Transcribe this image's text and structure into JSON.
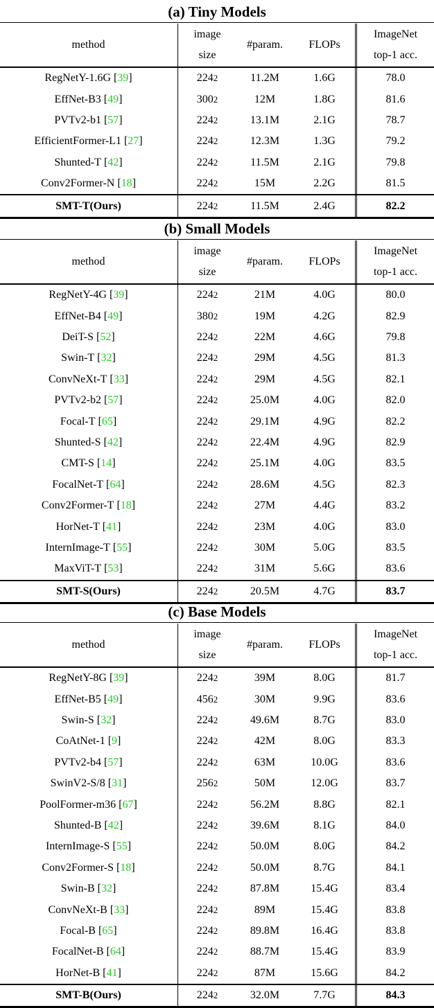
{
  "columns": {
    "method": "method",
    "image_size": [
      "image",
      "size"
    ],
    "params": "#param.",
    "flops": "FLOPs",
    "acc": [
      "ImageNet",
      "top-1 acc."
    ]
  },
  "sections": [
    {
      "title": "(a) Tiny Models",
      "rows": [
        {
          "name": "RegNetY-1.6G",
          "ref": "39",
          "size": "224",
          "params": "11.2M",
          "flops": "1.6G",
          "acc": "78.0"
        },
        {
          "name": "EffNet-B3",
          "ref": "49",
          "size": "300",
          "params": "12M",
          "flops": "1.8G",
          "acc": "81.6"
        },
        {
          "name": "PVTv2-b1",
          "ref": "57",
          "size": "224",
          "params": "13.1M",
          "flops": "2.1G",
          "acc": "78.7"
        },
        {
          "name": "EfficientFormer-L1",
          "ref": "27",
          "size": "224",
          "params": "12.3M",
          "flops": "1.3G",
          "acc": "79.2"
        },
        {
          "name": "Shunted-T",
          "ref": "42",
          "size": "224",
          "params": "11.5M",
          "flops": "2.1G",
          "acc": "79.8"
        },
        {
          "name": "Conv2Former-N",
          "ref": "18",
          "size": "224",
          "params": "15M",
          "flops": "2.2G",
          "acc": "81.5"
        }
      ],
      "ours": {
        "name": "SMT-T(Ours)",
        "size": "224",
        "params": "11.5M",
        "flops": "2.4G",
        "acc": "82.2"
      }
    },
    {
      "title": "(b) Small Models",
      "rows": [
        {
          "name": "RegNetY-4G",
          "ref": "39",
          "size": "224",
          "params": "21M",
          "flops": "4.0G",
          "acc": "80.0"
        },
        {
          "name": "EffNet-B4",
          "ref": "49",
          "size": "380",
          "params": "19M",
          "flops": "4.2G",
          "acc": "82.9"
        },
        {
          "name": "DeiT-S",
          "ref": "52",
          "size": "224",
          "params": "22M",
          "flops": "4.6G",
          "acc": "79.8"
        },
        {
          "name": "Swin-T",
          "ref": "32",
          "size": "224",
          "params": "29M",
          "flops": "4.5G",
          "acc": "81.3"
        },
        {
          "name": "ConvNeXt-T",
          "ref": "33",
          "size": "224",
          "params": "29M",
          "flops": "4.5G",
          "acc": "82.1"
        },
        {
          "name": "PVTv2-b2",
          "ref": "57",
          "size": "224",
          "params": "25.0M",
          "flops": "4.0G",
          "acc": "82.0"
        },
        {
          "name": "Focal-T",
          "ref": "65",
          "size": "224",
          "params": "29.1M",
          "flops": "4.9G",
          "acc": "82.2"
        },
        {
          "name": "Shunted-S",
          "ref": "42",
          "size": "224",
          "params": "22.4M",
          "flops": "4.9G",
          "acc": "82.9"
        },
        {
          "name": "CMT-S",
          "ref": "14",
          "size": "224",
          "params": "25.1M",
          "flops": "4.0G",
          "acc": "83.5"
        },
        {
          "name": "FocalNet-T",
          "ref": "64",
          "size": "224",
          "params": "28.6M",
          "flops": "4.5G",
          "acc": "82.3"
        },
        {
          "name": "Conv2Former-T",
          "ref": "18",
          "size": "224",
          "params": "27M",
          "flops": "4.4G",
          "acc": "83.2"
        },
        {
          "name": "HorNet-T",
          "ref": "41",
          "size": "224",
          "params": "23M",
          "flops": "4.0G",
          "acc": "83.0"
        },
        {
          "name": "InternImage-T",
          "ref": "55",
          "size": "224",
          "params": "30M",
          "flops": "5.0G",
          "acc": "83.5"
        },
        {
          "name": "MaxViT-T",
          "ref": "53",
          "size": "224",
          "params": "31M",
          "flops": "5.6G",
          "acc": "83.6"
        }
      ],
      "ours": {
        "name": "SMT-S(Ours)",
        "size": "224",
        "params": "20.5M",
        "flops": "4.7G",
        "acc": "83.7"
      }
    },
    {
      "title": "(c) Base Models",
      "rows": [
        {
          "name": "RegNetY-8G",
          "ref": "39",
          "size": "224",
          "params": "39M",
          "flops": "8.0G",
          "acc": "81.7"
        },
        {
          "name": "EffNet-B5",
          "ref": "49",
          "size": "456",
          "params": "30M",
          "flops": "9.9G",
          "acc": "83.6"
        },
        {
          "name": "Swin-S",
          "ref": "32",
          "size": "224",
          "params": "49.6M",
          "flops": "8.7G",
          "acc": "83.0"
        },
        {
          "name": "CoAtNet-1",
          "ref": "9",
          "size": "224",
          "params": "42M",
          "flops": "8.0G",
          "acc": "83.3"
        },
        {
          "name": "PVTv2-b4",
          "ref": "57",
          "size": "224",
          "params": "63M",
          "flops": "10.0G",
          "acc": "83.6"
        },
        {
          "name": "SwinV2-S/8",
          "ref": "31",
          "size": "256",
          "params": "50M",
          "flops": "12.0G",
          "acc": "83.7"
        },
        {
          "name": "PoolFormer-m36",
          "ref": "67",
          "size": "224",
          "params": "56.2M",
          "flops": "8.8G",
          "acc": "82.1"
        },
        {
          "name": "Shunted-B",
          "ref": "42",
          "size": "224",
          "params": "39.6M",
          "flops": "8.1G",
          "acc": "84.0"
        },
        {
          "name": "InternImage-S",
          "ref": "55",
          "size": "224",
          "params": "50.0M",
          "flops": "8.0G",
          "acc": "84.2"
        },
        {
          "name": "Conv2Former-S",
          "ref": "18",
          "size": "224",
          "params": "50.0M",
          "flops": "8.7G",
          "acc": "84.1"
        },
        {
          "name": "Swin-B",
          "ref": "32",
          "size": "224",
          "params": "87.8M",
          "flops": "15.4G",
          "acc": "83.4"
        },
        {
          "name": "ConvNeXt-B",
          "ref": "33",
          "size": "224",
          "params": "89M",
          "flops": "15.4G",
          "acc": "83.8"
        },
        {
          "name": "Focal-B",
          "ref": "65",
          "size": "224",
          "params": "89.8M",
          "flops": "16.4G",
          "acc": "83.8"
        },
        {
          "name": "FocalNet-B",
          "ref": "64",
          "size": "224",
          "params": "88.7M",
          "flops": "15.4G",
          "acc": "83.9"
        },
        {
          "name": "HorNet-B",
          "ref": "41",
          "size": "224",
          "params": "87M",
          "flops": "15.6G",
          "acc": "84.2"
        }
      ],
      "ours": {
        "name": "SMT-B(Ours)",
        "size": "224",
        "params": "32.0M",
        "flops": "7.7G",
        "acc": "84.3"
      }
    }
  ],
  "exponent": "2"
}
